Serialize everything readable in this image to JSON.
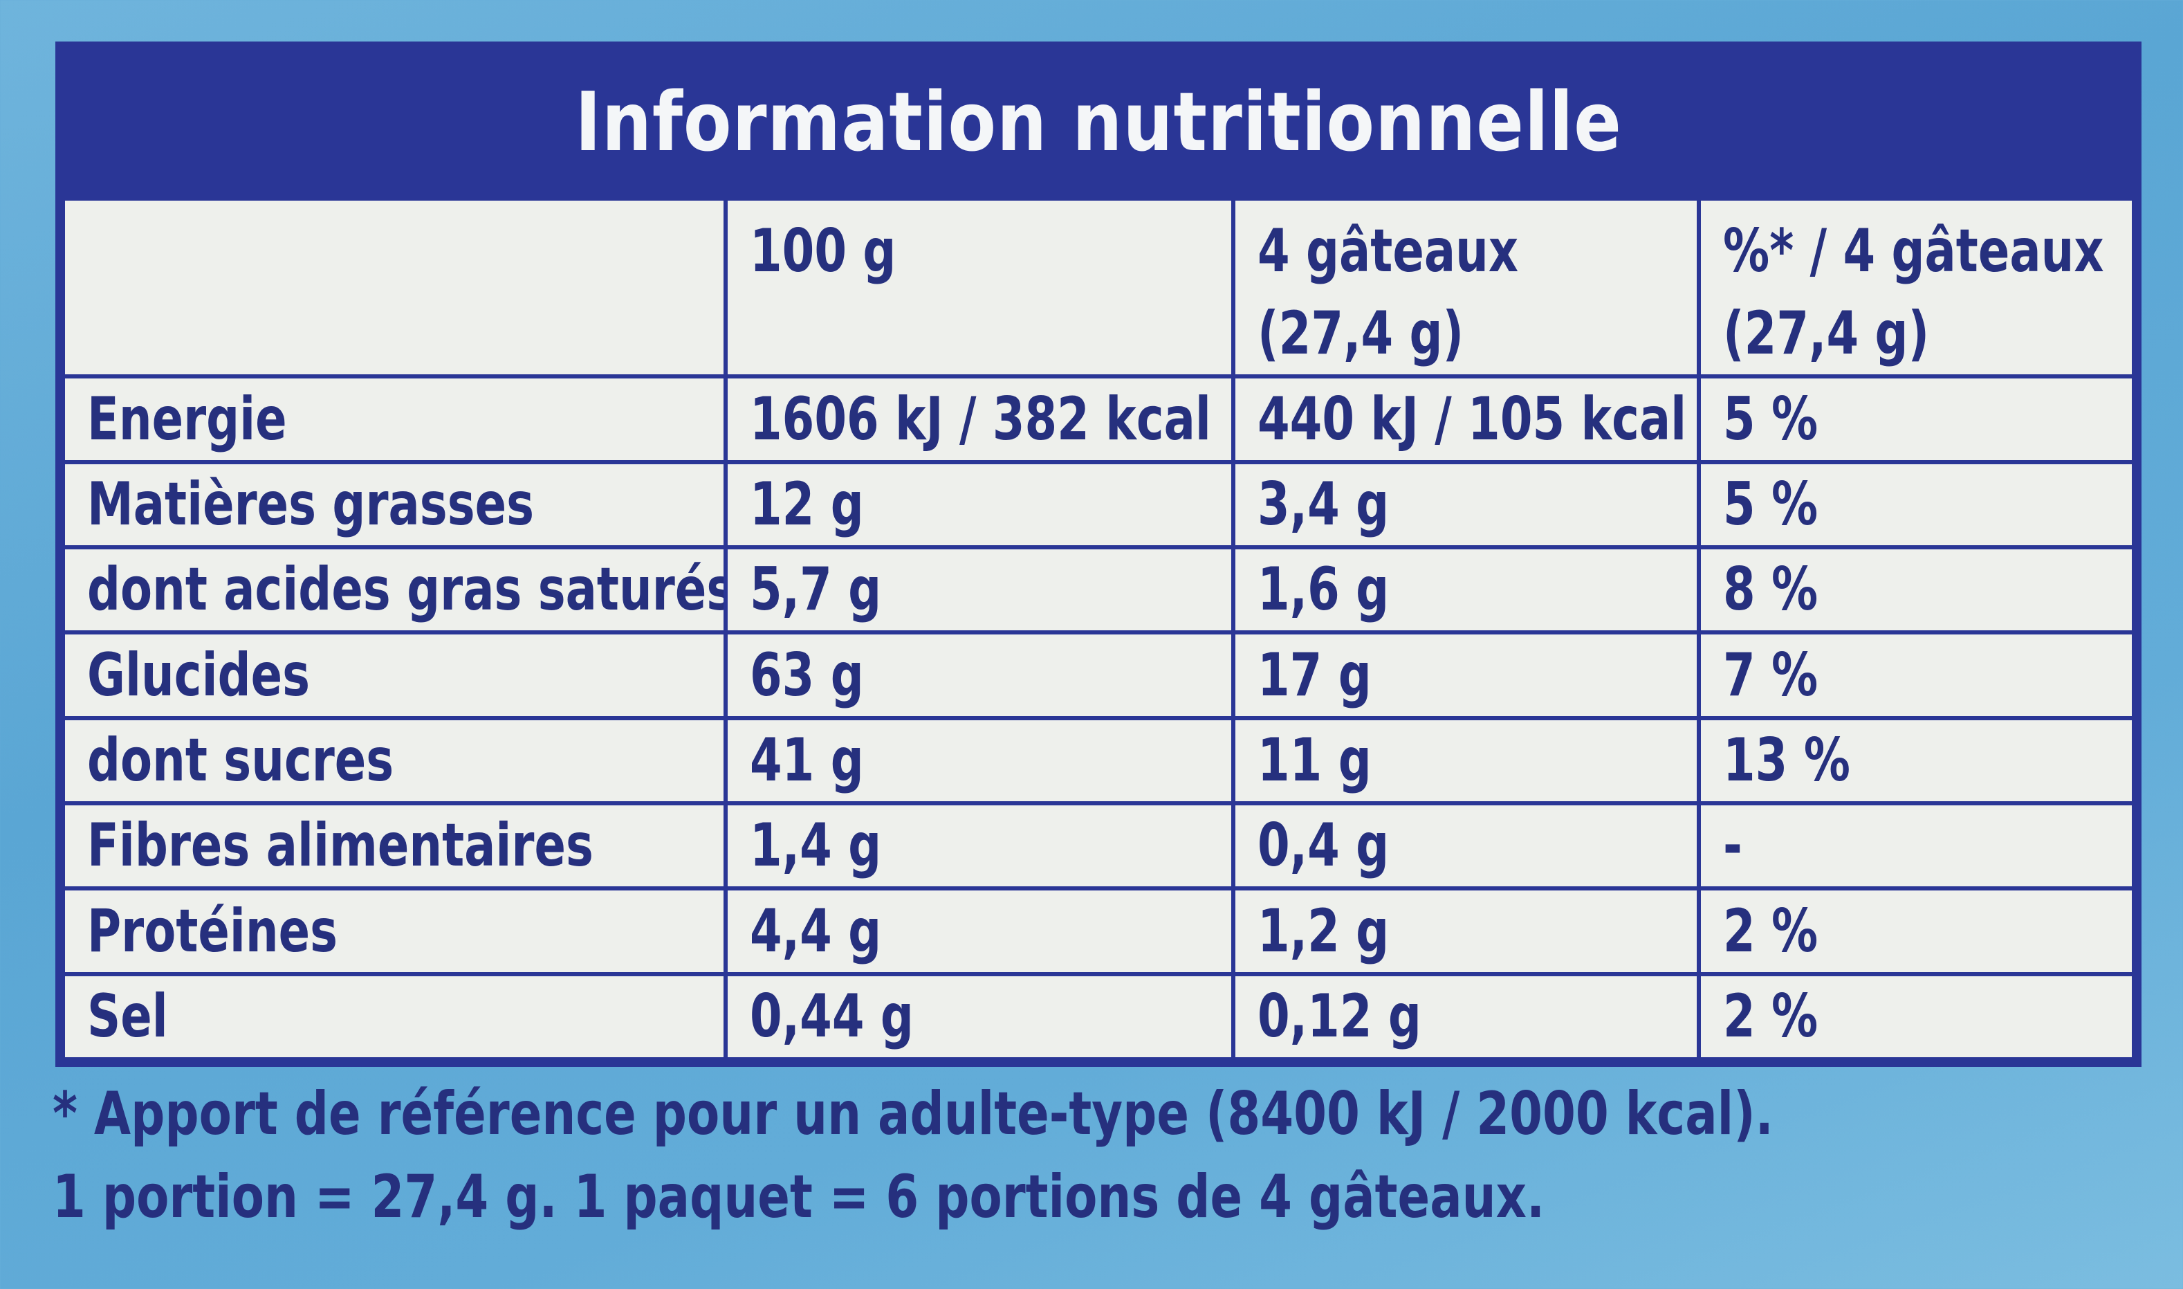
{
  "title": "Information nutritionnelle",
  "header": {
    "col1": "",
    "col2_line1": "100 g",
    "col3_line1": "4 gâteaux",
    "col3_line2": "(27,4 g)",
    "col4_line1": "%* / 4 gâteaux",
    "col4_line2": "(27,4 g)"
  },
  "rows": [
    {
      "label": "Energie",
      "per100": "1606 kJ / 382 kcal",
      "per4": "440 kJ / 105 kcal",
      "pct": "5 %"
    },
    {
      "label": "Matières grasses",
      "per100": "12 g",
      "per4": "3,4 g",
      "pct": "5 %"
    },
    {
      "label": "dont acides gras saturés",
      "per100": "5,7 g",
      "per4": "1,6 g",
      "pct": "8 %"
    },
    {
      "label": "Glucides",
      "per100": "63 g",
      "per4": "17 g",
      "pct": "7 %"
    },
    {
      "label": "dont sucres",
      "per100": "41 g",
      "per4": "11 g",
      "pct": "13 %"
    },
    {
      "label": "Fibres alimentaires",
      "per100": "1,4 g",
      "per4": "0,4 g",
      "pct": "-"
    },
    {
      "label": "Protéines",
      "per100": "4,4 g",
      "per4": "1,2 g",
      "pct": "2 %"
    },
    {
      "label": "Sel",
      "per100": "0,44 g",
      "per4": "0,12 g",
      "pct": "2 %"
    }
  ],
  "footnotes": {
    "line1": "* Apport de référence pour un adulte-type (8400 kJ / 2000 kcal).",
    "line2": "1 portion = 27,4 g. 1 paquet = 6 portions de 4 gâteaux."
  },
  "colors": {
    "navy": "#2a3696",
    "text": "#26307e",
    "cell_bg": "#eef0ec",
    "background": "#5aa6d4"
  }
}
